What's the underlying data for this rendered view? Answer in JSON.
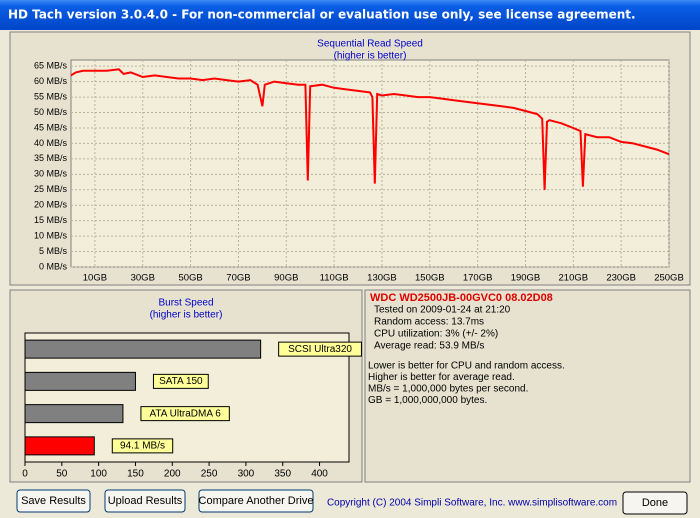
{
  "window": {
    "title": "HD Tach version 3.0.4.0  - For non-commercial or evaluation use only, see license agreement."
  },
  "chart_data": [
    {
      "type": "line",
      "title": "Sequential Read Speed",
      "subtitle": "(higher is better)",
      "color": "#ff0000",
      "grid": true,
      "xlim": [
        0,
        250
      ],
      "ylim": [
        0,
        67
      ],
      "xticks": [
        {
          "value": 10,
          "label": "10GB"
        },
        {
          "value": 30,
          "label": "30GB"
        },
        {
          "value": 50,
          "label": "50GB"
        },
        {
          "value": 70,
          "label": "70GB"
        },
        {
          "value": 90,
          "label": "90GB"
        },
        {
          "value": 110,
          "label": "110GB"
        },
        {
          "value": 130,
          "label": "130GB"
        },
        {
          "value": 150,
          "label": "150GB"
        },
        {
          "value": 170,
          "label": "170GB"
        },
        {
          "value": 190,
          "label": "190GB"
        },
        {
          "value": 210,
          "label": "210GB"
        },
        {
          "value": 230,
          "label": "230GB"
        },
        {
          "value": 250,
          "label": "250GB"
        }
      ],
      "yticks": [
        {
          "value": 0,
          "label": "0 MB/s"
        },
        {
          "value": 5,
          "label": "5 MB/s"
        },
        {
          "value": 10,
          "label": "10 MB/s"
        },
        {
          "value": 15,
          "label": "15 MB/s"
        },
        {
          "value": 20,
          "label": "20 MB/s"
        },
        {
          "value": 25,
          "label": "25 MB/s"
        },
        {
          "value": 30,
          "label": "30 MB/s"
        },
        {
          "value": 35,
          "label": "35 MB/s"
        },
        {
          "value": 40,
          "label": "40 MB/s"
        },
        {
          "value": 45,
          "label": "45 MB/s"
        },
        {
          "value": 50,
          "label": "50 MB/s"
        },
        {
          "value": 55,
          "label": "55 MB/s"
        },
        {
          "value": 60,
          "label": "60 MB/s"
        },
        {
          "value": 65,
          "label": "65 MB/s"
        }
      ],
      "x": [
        0,
        2,
        5,
        10,
        15,
        20,
        22,
        25,
        30,
        35,
        40,
        45,
        50,
        55,
        60,
        65,
        70,
        75,
        78,
        80,
        81,
        85,
        90,
        95,
        98,
        99,
        100,
        105,
        110,
        115,
        120,
        125,
        126,
        127,
        128,
        130,
        135,
        140,
        145,
        150,
        155,
        160,
        165,
        170,
        175,
        180,
        185,
        190,
        195,
        197,
        198,
        199,
        200,
        205,
        210,
        213,
        214,
        215,
        220,
        225,
        230,
        235,
        240,
        245,
        250
      ],
      "values": [
        62,
        63,
        63.5,
        63.5,
        63.5,
        64,
        62.5,
        63,
        61.5,
        62,
        61.5,
        61,
        61,
        60.5,
        61,
        60.5,
        60,
        60.5,
        59,
        52,
        59,
        60,
        59.5,
        59,
        59,
        28,
        58.5,
        59,
        58,
        57.5,
        57,
        56.5,
        55,
        27,
        56,
        55.5,
        56,
        55.5,
        55,
        55,
        54.5,
        54,
        53.5,
        53,
        52.5,
        52,
        51.5,
        50.5,
        49.5,
        48,
        25,
        47,
        47.5,
        46.5,
        45,
        44,
        26,
        43,
        42,
        42,
        40.5,
        40,
        39,
        38,
        36.5
      ]
    },
    {
      "type": "bar",
      "orientation": "horizontal",
      "title": "Burst Speed",
      "subtitle": "(higher is better)",
      "categories": [
        "SCSI Ultra320",
        "SATA 150",
        "ATA UltraDMA 6",
        null
      ],
      "values": [
        320,
        150,
        133,
        94.1
      ],
      "value_labels": [
        null,
        null,
        null,
        "94.1 MB/s"
      ],
      "colors": [
        "#808080",
        "#808080",
        "#808080",
        "#ff0000"
      ],
      "xlim": [
        0,
        440
      ],
      "xticks": [
        0,
        50,
        100,
        150,
        200,
        250,
        300,
        350,
        400
      ]
    }
  ],
  "info": {
    "drive": "WDC WD2500JB-00GVC0 08.02D08",
    "lines": [
      "Tested on 2009-01-24 at 21:20",
      "Random access: 13.7ms",
      "CPU utilization: 3% (+/- 2%)",
      "Average read: 53.9 MB/s"
    ],
    "notes": [
      "Lower is better for CPU and random access.",
      "Higher is better for average read.",
      "MB/s = 1,000,000 bytes per second.",
      "GB = 1,000,000,000 bytes."
    ]
  },
  "buttons": [
    "Save Results",
    "Upload Results",
    "Compare Another Drive",
    "Done"
  ],
  "copyright": "Copyright (C) 2004 Simpli Software, Inc. www.simplisoftware.com"
}
